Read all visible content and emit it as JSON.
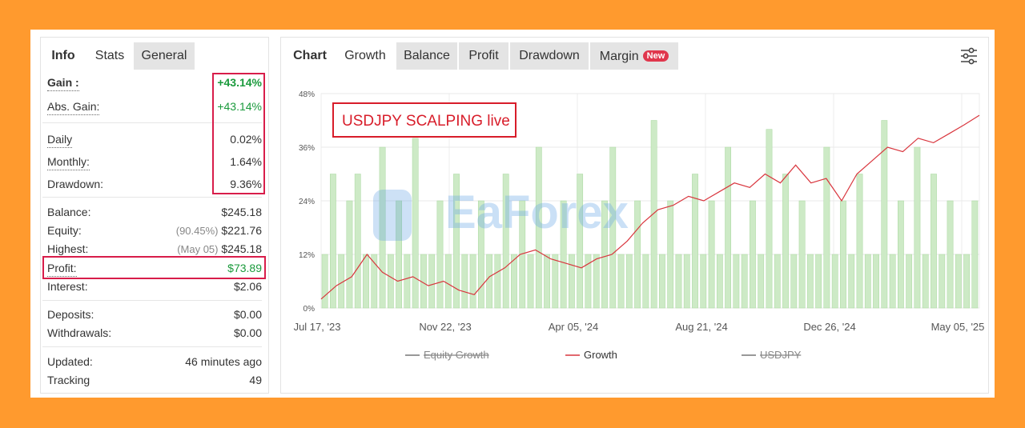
{
  "left_tabs": [
    "Info",
    "Stats",
    "General"
  ],
  "stats": [
    {
      "label": "Gain :",
      "value": "+43.14%"
    },
    {
      "label": "Abs. Gain:",
      "value": "+43.14%"
    },
    {
      "label": "Daily",
      "value": "0.02%"
    },
    {
      "label": "Monthly:",
      "value": "1.64%"
    },
    {
      "label": "Drawdown:",
      "value": "9.36%"
    },
    {
      "label": "Balance:",
      "value": "$245.18"
    },
    {
      "label": "Equity:",
      "note": "(90.45%)",
      "value": "$221.76"
    },
    {
      "label": "Highest:",
      "note": "(May 05)",
      "value": "$245.18"
    },
    {
      "label": "Profit:",
      "value": "$73.89"
    },
    {
      "label": "Interest:",
      "value": "$2.06"
    },
    {
      "label": "Deposits:",
      "value": "$0.00"
    },
    {
      "label": "Withdrawals:",
      "value": "$0.00"
    },
    {
      "label": "Updated:",
      "value": "46 minutes ago"
    },
    {
      "label": "Tracking",
      "value": "49"
    }
  ],
  "chart": {
    "tabs": [
      "Chart",
      "Growth",
      "Balance",
      "Profit",
      "Drawdown",
      "Margin"
    ],
    "badge": "New",
    "annotation": "USDJPY SCALPING live",
    "watermark": "EaForex",
    "ylim": [
      0,
      48
    ],
    "yticks": [
      {
        "value": 0,
        "label": "0%"
      },
      {
        "value": 12,
        "label": "12%"
      },
      {
        "value": 24,
        "label": "24%"
      },
      {
        "value": 36,
        "label": "36%"
      },
      {
        "value": 48,
        "label": "48%"
      }
    ],
    "xlabels": [
      "Jul 17, '23",
      "Nov 22, '23",
      "Apr 05, '24",
      "Aug 21, '24",
      "Dec 26, '24",
      "May 05, '25"
    ],
    "legend": [
      "Equity Growth",
      "Growth",
      "USDJPY"
    ],
    "growth_color": "#d9363e",
    "bar_color": "#cdeac6",
    "growth": [
      2,
      5,
      7,
      12,
      8,
      6,
      7,
      5,
      6,
      4,
      3,
      7,
      9,
      12,
      13,
      11,
      10,
      9,
      11,
      12,
      15,
      19,
      22,
      23,
      25,
      24,
      26,
      28,
      27,
      30,
      28,
      32,
      28,
      29,
      24,
      30,
      33,
      36,
      35,
      38,
      37,
      39,
      41,
      43.14
    ],
    "bars": [
      12,
      30,
      12,
      24,
      30,
      12,
      12,
      36,
      12,
      24,
      12,
      38,
      12,
      12,
      24,
      12,
      30,
      12,
      12,
      24,
      12,
      12,
      30,
      12,
      24,
      12,
      36,
      12,
      12,
      24,
      12,
      30,
      12,
      12,
      24,
      36,
      12,
      12,
      24,
      12,
      42,
      12,
      24,
      12,
      12,
      30,
      12,
      24,
      12,
      36,
      12,
      12,
      24,
      12,
      40,
      12,
      30,
      12,
      24,
      12,
      12,
      36,
      12,
      24,
      12,
      30,
      12,
      12,
      42,
      12,
      24,
      12,
      36,
      12,
      30,
      12,
      24,
      12,
      12,
      24
    ]
  }
}
